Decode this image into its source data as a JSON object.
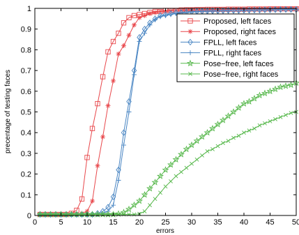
{
  "chart_data": {
    "type": "line",
    "xlabel": "errors",
    "ylabel": "precentage of testing faces",
    "xlim": [
      0,
      50
    ],
    "ylim": [
      0,
      1
    ],
    "xticks": [
      0,
      5,
      10,
      15,
      20,
      25,
      30,
      35,
      40,
      45,
      50
    ],
    "yticks": [
      0,
      0.1,
      0.2,
      0.3,
      0.4,
      0.5,
      0.6,
      0.7,
      0.8,
      0.9,
      1
    ],
    "xtick_labels": [
      "0",
      "5",
      "10",
      "15",
      "20",
      "25",
      "30",
      "35",
      "40",
      "45",
      "50"
    ],
    "ytick_labels": [
      "0",
      "0.1",
      "0.2",
      "0.3",
      "0.4",
      "0.5",
      "0.6",
      "0.7",
      "0.8",
      "0.9",
      "1"
    ],
    "grid": false,
    "legend_position": "top-right",
    "colors": {
      "red": "#e8474b",
      "blue": "#4a86c3",
      "green": "#57b84c"
    },
    "series": [
      {
        "name": "Proposed, left faces",
        "color": "#e8474b",
        "marker": "square",
        "x": [
          1,
          2,
          3,
          4,
          5,
          6,
          7,
          8,
          9,
          10,
          11,
          12,
          13,
          14,
          15,
          16,
          17,
          18,
          19,
          20,
          21,
          22,
          23,
          24,
          25,
          26,
          27,
          28,
          29,
          30,
          31,
          32,
          33,
          34,
          35,
          36,
          37,
          38,
          39,
          40,
          41,
          42,
          43,
          44,
          45,
          46,
          47,
          48,
          49,
          50
        ],
        "y": [
          0.005,
          0.005,
          0.005,
          0.005,
          0.005,
          0.005,
          0.01,
          0.025,
          0.08,
          0.28,
          0.42,
          0.54,
          0.67,
          0.79,
          0.84,
          0.88,
          0.93,
          0.955,
          0.965,
          0.97,
          0.975,
          0.98,
          0.985,
          0.985,
          0.99,
          0.99,
          0.99,
          0.992,
          0.993,
          0.993,
          0.994,
          0.994,
          0.995,
          0.995,
          0.995,
          0.995,
          0.996,
          0.996,
          0.996,
          0.996,
          0.997,
          0.997,
          0.997,
          0.997,
          0.998,
          0.998,
          0.998,
          0.998,
          0.998,
          0.998
        ]
      },
      {
        "name": "Proposed, right faces",
        "color": "#e8474b",
        "marker": "star",
        "x": [
          1,
          2,
          3,
          4,
          5,
          6,
          7,
          8,
          9,
          10,
          11,
          12,
          13,
          14,
          15,
          16,
          17,
          18,
          19,
          20,
          21,
          22,
          23,
          24,
          25,
          26,
          27,
          28,
          29,
          30,
          31,
          32,
          33,
          34,
          35,
          36,
          37,
          38,
          39,
          40,
          41,
          42,
          43,
          44,
          45,
          46,
          47,
          48,
          49,
          50
        ],
        "y": [
          0.005,
          0.005,
          0.005,
          0.005,
          0.005,
          0.005,
          0.005,
          0.005,
          0.01,
          0.02,
          0.07,
          0.24,
          0.38,
          0.53,
          0.65,
          0.78,
          0.82,
          0.87,
          0.92,
          0.955,
          0.965,
          0.975,
          0.98,
          0.985,
          0.985,
          0.988,
          0.99,
          0.99,
          0.991,
          0.992,
          0.993,
          0.993,
          0.994,
          0.994,
          0.995,
          0.995,
          0.995,
          0.996,
          0.996,
          0.996,
          0.996,
          0.997,
          0.997,
          0.997,
          0.997,
          0.998,
          0.998,
          0.998,
          0.998,
          0.998
        ]
      },
      {
        "name": "FPLL, left faces",
        "color": "#4a86c3",
        "marker": "diamond",
        "x": [
          1,
          2,
          3,
          4,
          5,
          6,
          7,
          8,
          9,
          10,
          11,
          12,
          13,
          14,
          15,
          16,
          17,
          18,
          19,
          20,
          21,
          22,
          23,
          24,
          25,
          26,
          27,
          28,
          29,
          30,
          31,
          32,
          33,
          34,
          35,
          36,
          37,
          38,
          39,
          40,
          41,
          42,
          43,
          44,
          45,
          46,
          47,
          48,
          49,
          50
        ],
        "y": [
          0.005,
          0.005,
          0.005,
          0.005,
          0.005,
          0.005,
          0.005,
          0.005,
          0.005,
          0.005,
          0.005,
          0.01,
          0.02,
          0.04,
          0.09,
          0.22,
          0.4,
          0.55,
          0.7,
          0.86,
          0.9,
          0.93,
          0.95,
          0.965,
          0.97,
          0.975,
          0.98,
          0.98,
          0.982,
          0.984,
          0.985,
          0.986,
          0.987,
          0.988,
          0.988,
          0.989,
          0.99,
          0.99,
          0.99,
          0.991,
          0.991,
          0.992,
          0.992,
          0.993,
          0.993,
          0.994,
          0.994,
          0.995,
          0.995,
          0.995
        ]
      },
      {
        "name": "FPLL, right faces",
        "color": "#4a86c3",
        "marker": "plus",
        "x": [
          1,
          2,
          3,
          4,
          5,
          6,
          7,
          8,
          9,
          10,
          11,
          12,
          13,
          14,
          15,
          16,
          17,
          18,
          19,
          20,
          21,
          22,
          23,
          24,
          25,
          26,
          27,
          28,
          29,
          30,
          31,
          32,
          33,
          34,
          35,
          36,
          37,
          38,
          39,
          40,
          41,
          42,
          43,
          44,
          45,
          46,
          47,
          48,
          49,
          50
        ],
        "y": [
          0.005,
          0.005,
          0.005,
          0.005,
          0.005,
          0.005,
          0.005,
          0.005,
          0.005,
          0.005,
          0.005,
          0.005,
          0.01,
          0.02,
          0.05,
          0.17,
          0.34,
          0.5,
          0.68,
          0.84,
          0.88,
          0.92,
          0.945,
          0.96,
          0.965,
          0.97,
          0.975,
          0.978,
          0.98,
          0.982,
          0.984,
          0.985,
          0.986,
          0.987,
          0.988,
          0.988,
          0.989,
          0.99,
          0.99,
          0.99,
          0.991,
          0.991,
          0.992,
          0.992,
          0.993,
          0.993,
          0.994,
          0.994,
          0.994,
          0.995
        ]
      },
      {
        "name": "Pose−free, left faces",
        "color": "#57b84c",
        "marker": "pentagram",
        "x": [
          1,
          2,
          3,
          4,
          5,
          6,
          7,
          8,
          9,
          10,
          11,
          12,
          13,
          14,
          15,
          16,
          17,
          18,
          19,
          20,
          21,
          22,
          23,
          24,
          25,
          26,
          27,
          28,
          29,
          30,
          31,
          32,
          33,
          34,
          35,
          36,
          37,
          38,
          39,
          40,
          41,
          42,
          43,
          44,
          45,
          46,
          47,
          48,
          49,
          50
        ],
        "y": [
          0.005,
          0.005,
          0.005,
          0.005,
          0.005,
          0.005,
          0.005,
          0.005,
          0.005,
          0.005,
          0.005,
          0.005,
          0.005,
          0.005,
          0.005,
          0.008,
          0.015,
          0.03,
          0.05,
          0.07,
          0.1,
          0.13,
          0.16,
          0.19,
          0.22,
          0.245,
          0.27,
          0.295,
          0.32,
          0.34,
          0.36,
          0.38,
          0.4,
          0.42,
          0.44,
          0.46,
          0.48,
          0.5,
          0.52,
          0.54,
          0.55,
          0.565,
          0.58,
          0.59,
          0.6,
          0.61,
          0.62,
          0.625,
          0.63,
          0.64
        ]
      },
      {
        "name": "Pose−free, right faces",
        "color": "#57b84c",
        "marker": "x",
        "x": [
          1,
          2,
          3,
          4,
          5,
          6,
          7,
          8,
          9,
          10,
          11,
          12,
          13,
          14,
          15,
          16,
          17,
          18,
          19,
          20,
          21,
          22,
          23,
          24,
          25,
          26,
          27,
          28,
          29,
          30,
          31,
          32,
          33,
          34,
          35,
          36,
          37,
          38,
          39,
          40,
          41,
          42,
          43,
          44,
          45,
          46,
          47,
          48,
          49,
          50
        ],
        "y": [
          0.005,
          0.005,
          0.005,
          0.005,
          0.005,
          0.005,
          0.005,
          0.005,
          0.005,
          0.005,
          0.005,
          0.005,
          0.005,
          0.005,
          0.005,
          0.005,
          0.005,
          0.005,
          0.005,
          0.008,
          0.02,
          0.05,
          0.08,
          0.11,
          0.14,
          0.165,
          0.19,
          0.21,
          0.23,
          0.25,
          0.27,
          0.29,
          0.31,
          0.32,
          0.335,
          0.35,
          0.36,
          0.375,
          0.385,
          0.4,
          0.41,
          0.42,
          0.435,
          0.445,
          0.455,
          0.465,
          0.475,
          0.485,
          0.495,
          0.5
        ]
      }
    ]
  }
}
